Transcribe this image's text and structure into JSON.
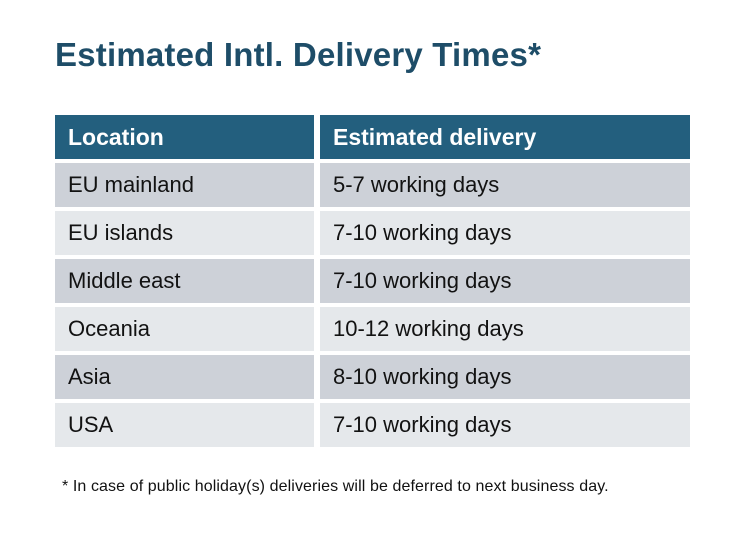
{
  "title": "Estimated Intl. Delivery Times*",
  "colors": {
    "title_text": "#1e4d68",
    "header_background": "#235f7e",
    "header_text": "#ffffff",
    "row_dark": "#cdd1d8",
    "row_light": "#e5e8eb",
    "body_text": "#121212",
    "page_background": "#ffffff"
  },
  "table": {
    "headers": [
      "Location",
      "Estimated delivery"
    ],
    "rows": [
      {
        "location": "EU mainland",
        "delivery": "5-7 working days"
      },
      {
        "location": "EU islands",
        "delivery": "7-10 working days"
      },
      {
        "location": "Middle east",
        "delivery": "7-10 working days"
      },
      {
        "location": "Oceania",
        "delivery": "10-12 working days"
      },
      {
        "location": "Asia",
        "delivery": "8-10 working days"
      },
      {
        "location": "USA",
        "delivery": "7-10 working days"
      }
    ]
  },
  "footnote": "* In case of public holiday(s) deliveries will be deferred to next business day."
}
